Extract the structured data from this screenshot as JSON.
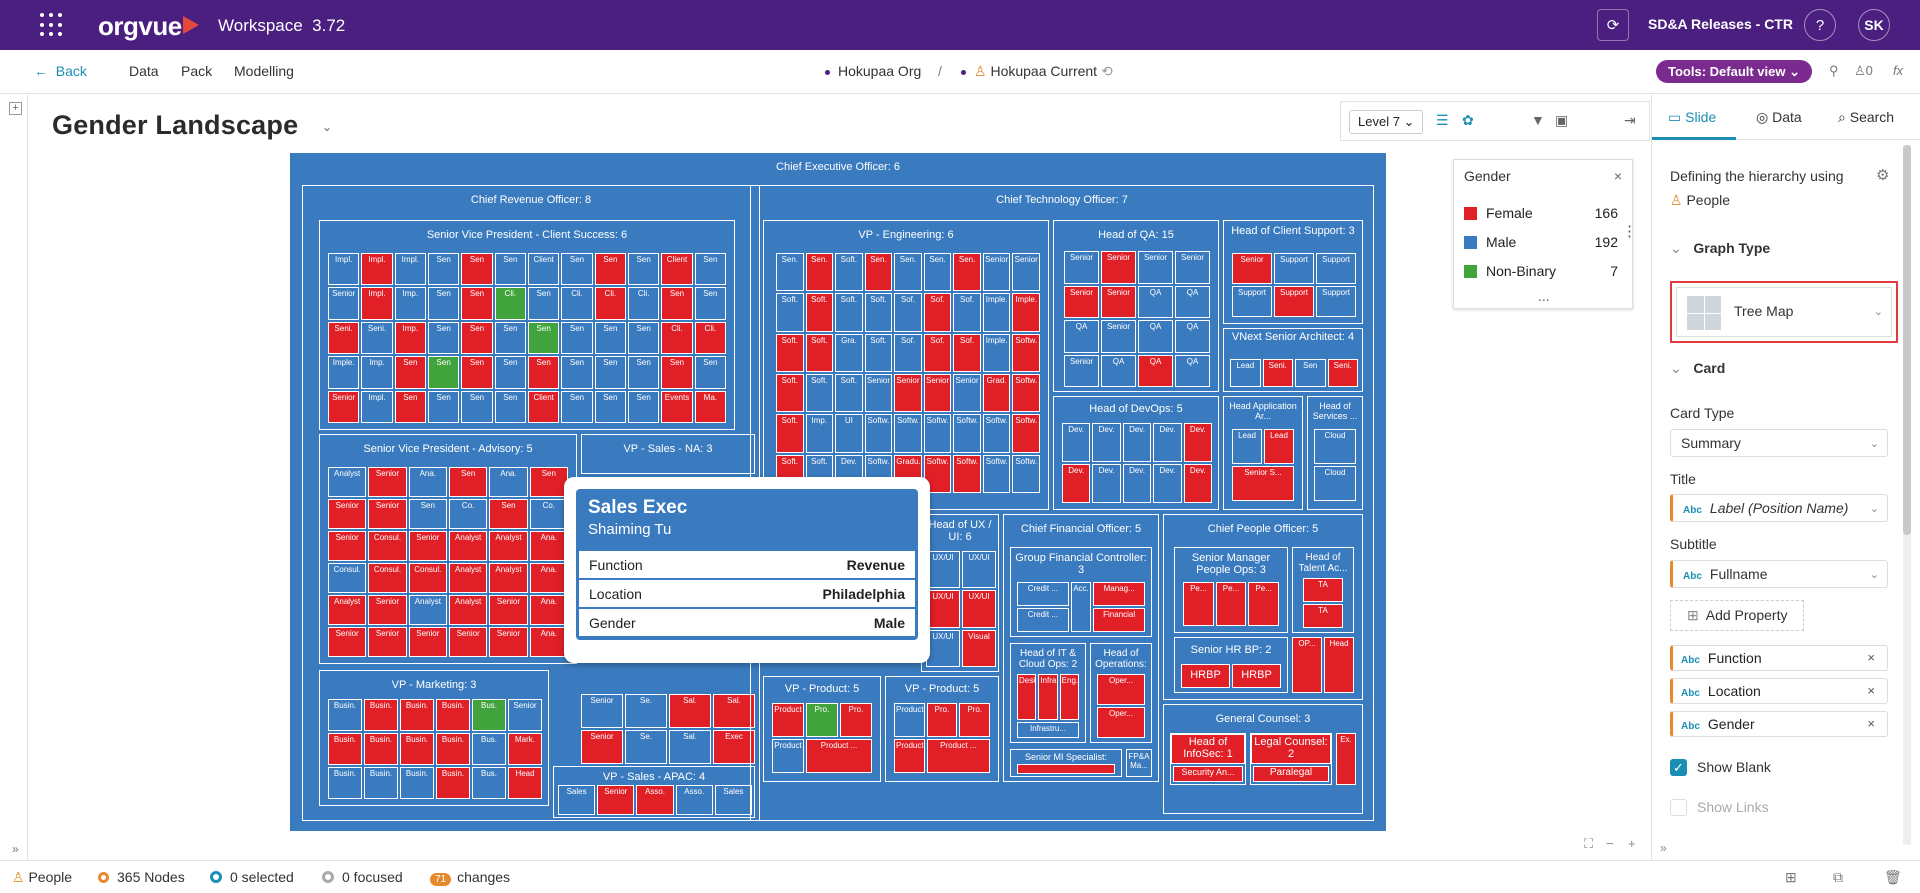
{
  "app": {
    "brand": "orgvue",
    "workspace_label": "Workspace",
    "version": "3.72",
    "release": "SD&A Releases - CTR",
    "help": "?",
    "user_initials": "SK"
  },
  "nav": {
    "back": "Back",
    "items": [
      "Data",
      "Pack",
      "Modelling"
    ],
    "crumb_org": "Hokupaa Org",
    "crumb_sep": "/",
    "crumb_current": "Hokupaa Current",
    "tools": "Tools: Default view",
    "people_count": "0"
  },
  "page": {
    "title": "Gender Landscape",
    "level": "Level 7"
  },
  "treemap": {
    "root": "Chief Executive Officer: 6",
    "cro": "Chief Revenue Officer: 8",
    "cto": "Chief Technology Officer: 7",
    "svp_cs": "Senior Vice President  - Client Success: 6",
    "svp_adv": "Senior Vice President - Advisory: 5",
    "vp_na": "VP - Sales - NA: 3",
    "vp_mkt": "VP - Marketing: 3",
    "vp_apac": "VP - Sales - APAC: 4",
    "vp_eng": "VP - Engineering: 6",
    "head_qa": "Head of QA: 15",
    "head_cs": "Head of Client Support: 3",
    "vnext": "VNext Senior Architect: 4",
    "head_devops": "Head of DevOps: 5",
    "cfo": "Chief Financial Officer: 5",
    "cpo": "Chief People Officer: 5",
    "head_ux": "Head of UX / UI: 6",
    "vp_prod1": "VP - Product: 5",
    "vp_prod2": "VP - Product: 5",
    "gfc": "Group Financial Controller: 3",
    "head_it": "Head of IT & Cloud Ops: 2",
    "head_ops": "Head of Operations:",
    "smpo": "Senior Manager People Ops: 3",
    "head_ta": "Head of Talent Ac...",
    "hrbp": "Senior HR BP: 2",
    "gc": "General Counsel: 3",
    "mi": "Senior MI Specialist:",
    "fpa": "FP&A Ma...",
    "head_app": "Head Application Ar...",
    "head_svc": "Head of Services ...",
    "four": "4",
    "hrbp_cells": [
      "HRBP",
      "HRBP"
    ],
    "infosec": "Head of InfoSec: 1",
    "legal": "Legal Counsel: 2",
    "security": "Security An...",
    "paralegal": "Paralegal"
  },
  "popup": {
    "name": "Sales Exec",
    "person": "Shaiming Tu",
    "rows": [
      {
        "k": "Function",
        "v": "Revenue"
      },
      {
        "k": "Location",
        "v": "Philadelphia"
      },
      {
        "k": "Gender",
        "v": "Male"
      }
    ]
  },
  "legend": {
    "title": "Gender",
    "items": [
      {
        "label": "Female",
        "count": "166",
        "color": "#e01f27"
      },
      {
        "label": "Male",
        "count": "192",
        "color": "#3a7bbf"
      },
      {
        "label": "Non-Binary",
        "count": "7",
        "color": "#41a33c"
      }
    ],
    "more": "..."
  },
  "panel": {
    "tabs": [
      "Slide",
      "Data",
      "Search"
    ],
    "hierarchy_label": "Defining the hierarchy using",
    "hierarchy_value": "People",
    "graph_type_head": "Graph Type",
    "graph_type": "Tree Map",
    "card_head": "Card",
    "card_type_label": "Card Type",
    "card_type": "Summary",
    "title_label": "Title",
    "title_value": "Label (Position Name)",
    "subtitle_label": "Subtitle",
    "subtitle_value": "Fullname",
    "add_property": "Add Property",
    "properties": [
      "Function",
      "Location",
      "Gender"
    ],
    "show_blank": "Show Blank",
    "show_links": "Show Links",
    "abc": "Abc"
  },
  "status": {
    "people": "People",
    "nodes": "365 Nodes",
    "selected": "0 selected",
    "focused": "0 focused",
    "changes_count": "71",
    "changes": "changes"
  },
  "icons": [
    "apps-grid-icon",
    "refresh-icon",
    "help-icon",
    "back-arrow-icon",
    "sync-icon",
    "pin-icon",
    "person-icon",
    "fx-icon",
    "list-icon",
    "palette-icon",
    "filter-icon",
    "layers-icon",
    "export-icon",
    "close-icon",
    "gear-icon",
    "chevron-down-icon",
    "search-icon",
    "fullscreen-icon"
  ]
}
